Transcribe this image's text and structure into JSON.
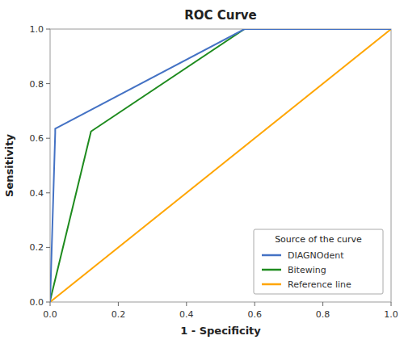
{
  "chart_data": {
    "type": "line",
    "title": "ROC Curve",
    "x_label": "1 - Specificity",
    "y_label": "Sensitivity",
    "xlim": [
      0.0,
      1.0
    ],
    "ylim": [
      0.0,
      1.0
    ],
    "xticks": [
      {
        "value": 0.0,
        "label": "0.0"
      },
      0.2,
      0.4,
      0.6,
      0.8,
      {
        "value": 1.0,
        "label": "1.0"
      }
    ],
    "yticks": [
      {
        "value": 0.0,
        "label": "0.0"
      },
      0.2,
      0.4,
      0.6,
      0.8,
      {
        "value": 1.0,
        "label": "1.0"
      }
    ],
    "series": [
      {
        "name": "DIAGNOdent",
        "color": "#4472C4",
        "x": [
          0.0,
          0.015,
          0.015,
          0.57,
          1.0
        ],
        "values": [
          0.0,
          0.62,
          0.635,
          1.0,
          1.0
        ]
      },
      {
        "name": "Bitewing",
        "color": "#1E8B1E",
        "x": [
          0.0,
          0.0,
          0.12,
          0.57,
          1.0
        ],
        "values": [
          0.0,
          0.005,
          0.625,
          1.0,
          1.0
        ]
      },
      {
        "name": "Reference line",
        "color": "#FFA500",
        "x": [
          0.0,
          1.0
        ],
        "values": [
          0.0,
          1.0
        ]
      }
    ],
    "legend_title": "Source of the curve",
    "legend": "lower right",
    "grid": false
  }
}
